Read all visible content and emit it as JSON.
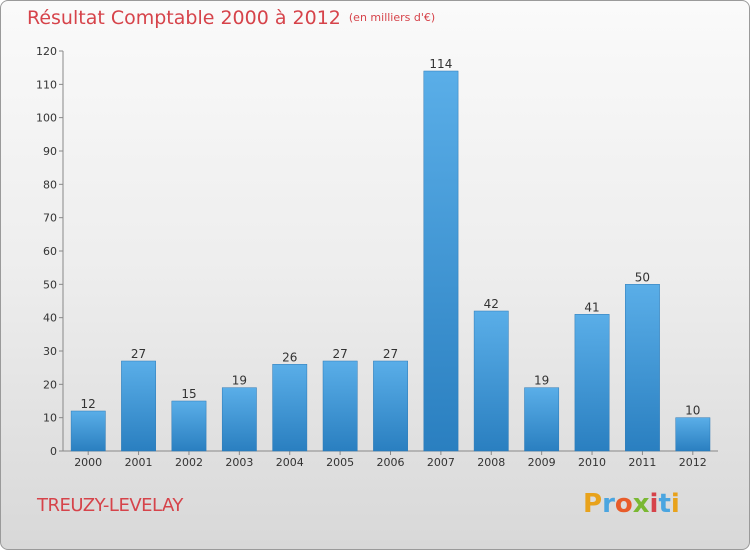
{
  "title": "Résultat Comptable 2000 à 2012",
  "subtitle": "(en milliers d'€)",
  "commune": "TREUZY-LEVELAY",
  "logo": {
    "text": "Proxiti",
    "letters": [
      "P",
      "r",
      "o",
      "x",
      "i",
      "t",
      "i"
    ],
    "colors": [
      "#e8a21b",
      "#4aa5e0",
      "#e85c2a",
      "#7ab833",
      "#d6434a",
      "#4aa5e0",
      "#e8a21b"
    ]
  },
  "colors": {
    "bar_top": "#5aaee8",
    "bar_bottom": "#2a7fc0",
    "accent": "#d6434a"
  },
  "chart_data": {
    "type": "bar",
    "title": "Résultat Comptable 2000 à 2012",
    "xlabel": "",
    "ylabel": "",
    "categories": [
      "2000",
      "2001",
      "2002",
      "2003",
      "2004",
      "2005",
      "2006",
      "2007",
      "2008",
      "2009",
      "2010",
      "2011",
      "2012"
    ],
    "values": [
      12,
      27,
      15,
      19,
      26,
      27,
      27,
      114,
      42,
      19,
      41,
      50,
      10
    ],
    "ylim": [
      0,
      120
    ],
    "yticks": [
      0,
      10,
      20,
      30,
      40,
      50,
      60,
      70,
      80,
      90,
      100,
      110,
      120
    ],
    "grid": false,
    "legend": "none"
  }
}
